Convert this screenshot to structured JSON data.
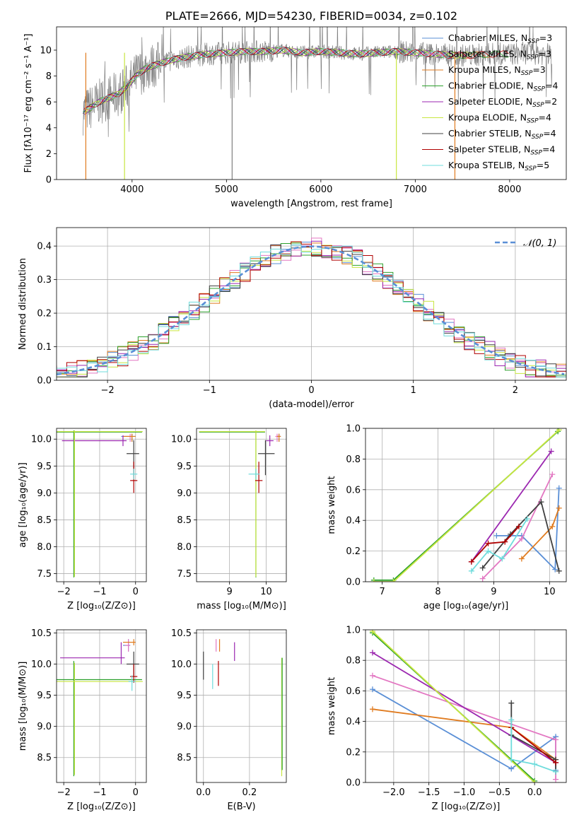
{
  "chart_data": [
    {
      "id": "spectrum",
      "type": "line",
      "title": "PLATE=2666, MJD=54230, FIBERID=0034, z=0.102",
      "xlabel": "wavelength [Angstrom, rest frame]",
      "ylabel": "Flux [fλ10⁻¹⁷ erg cm⁻² s⁻¹ A⁻¹]",
      "xlim": [
        3200,
        8600
      ],
      "ylim": [
        0,
        11.8
      ],
      "xticks": [
        4000,
        5000,
        6000,
        7000,
        8000
      ],
      "yticks": [
        0,
        2,
        4,
        6,
        8,
        10
      ],
      "grid": false,
      "legend_position": "top-right",
      "data_color": "#808080",
      "data_x": [
        3480,
        3550,
        3650,
        3750,
        3850,
        3950,
        4050,
        4150,
        4300,
        4450,
        4600,
        4800,
        5000,
        5200,
        5400,
        5600,
        5800,
        6000,
        6200,
        6400,
        6600,
        6800,
        7000,
        7200,
        7400,
        7600,
        7800,
        8000,
        8200,
        8400
      ],
      "data_y": [
        5.2,
        5.5,
        6.0,
        6.3,
        6.6,
        7.2,
        8.1,
        8.6,
        9.0,
        9.3,
        9.5,
        9.7,
        9.8,
        9.9,
        9.9,
        10.0,
        9.8,
        9.9,
        9.8,
        9.7,
        9.8,
        9.9,
        9.8,
        9.7,
        9.6,
        9.6,
        9.7,
        9.7,
        9.8,
        9.7
      ],
      "series": [
        {
          "name": "Chabrier MILES, N",
          "sub": "SSP",
          "suffix": "=3",
          "color": "#5a8fd6"
        },
        {
          "name": "Salpeter MILES, N",
          "sub": "SSP",
          "suffix": "=3",
          "color": "#e377c2"
        },
        {
          "name": "Kroupa MILES, N",
          "sub": "SSP",
          "suffix": "=3",
          "color": "#e07b1f"
        },
        {
          "name": "Chabrier ELODIE, N",
          "sub": "SSP",
          "suffix": "=4",
          "color": "#2ca02c"
        },
        {
          "name": "Salpeter ELODIE, N",
          "sub": "SSP",
          "suffix": "=2",
          "color": "#9b27b0"
        },
        {
          "name": "Kroupa ELODIE, N",
          "sub": "SSP",
          "suffix": "=4",
          "color": "#c8e640"
        },
        {
          "name": "Chabrier STELIB, N",
          "sub": "SSP",
          "suffix": "=4",
          "color": "#404040"
        },
        {
          "name": "Salpeter STELIB, N",
          "sub": "SSP",
          "suffix": "=4",
          "color": "#b00000"
        },
        {
          "name": "Kroupa STELIB, N",
          "sub": "SSP",
          "suffix": "=5",
          "color": "#6fdcdc"
        }
      ],
      "model_dropouts": [
        {
          "x": 3920,
          "color": "#c8e640"
        },
        {
          "x": 6800,
          "color": "#c8e640"
        },
        {
          "x": 7420,
          "color": "#e07b1f"
        },
        {
          "x": 5060,
          "color": "#808080"
        },
        {
          "x": 3510,
          "color": "#e07b1f"
        }
      ]
    },
    {
      "id": "residuals",
      "type": "histogram",
      "xlabel": "(data-model)/error",
      "ylabel": "Normed distribution",
      "xlim": [
        -2.5,
        2.5
      ],
      "ylim": [
        0,
        0.455
      ],
      "xticks": [
        -2,
        -1,
        0,
        1,
        2
      ],
      "yticks": [
        0.0,
        0.1,
        0.2,
        0.3,
        0.4
      ],
      "grid": true,
      "legend_position": "top-right",
      "normal_curve": {
        "label": "𝒩(0, 1)",
        "color": "#5a8fd6",
        "style": "dashed"
      },
      "bin_width": 0.1,
      "series_colors": [
        "#5a8fd6",
        "#e377c2",
        "#e07b1f",
        "#2ca02c",
        "#9b27b0",
        "#c8e640",
        "#404040",
        "#b00000",
        "#6fdcdc"
      ]
    },
    {
      "id": "age-vs-Z",
      "type": "errorbar",
      "xlabel": "Z [log₁₀(Z/Z⊙)]",
      "ylabel": "age  [log₁₀(age/yr)]",
      "xlim": [
        -2.2,
        0.3
      ],
      "ylim": [
        7.35,
        10.2
      ],
      "xticks": [
        -2,
        -1,
        0
      ],
      "yticks": [
        7.5,
        8.0,
        8.5,
        9.0,
        9.5,
        10.0
      ],
      "grid": true,
      "points": [
        {
          "x": -0.1,
          "y": 10.05,
          "xerr": [
            0.3,
            0.1
          ],
          "yerr": [
            0.1,
            0.05
          ],
          "color": "#5a8fd6"
        },
        {
          "x": -0.15,
          "y": 10.05,
          "xerr": [
            0.2,
            0.05
          ],
          "yerr": [
            0.1,
            0.05
          ],
          "color": "#e377c2"
        },
        {
          "x": -0.1,
          "y": 10.05,
          "xerr": [
            0.25,
            0.1
          ],
          "yerr": [
            0.1,
            0.05
          ],
          "color": "#e07b1f"
        },
        {
          "x": -1.72,
          "y": 10.13,
          "xerr": [
            0.5,
            1.9
          ],
          "yerr": [
            2.7,
            0.03
          ],
          "color": "#2ca02c"
        },
        {
          "x": -0.35,
          "y": 9.97,
          "xerr": [
            1.7,
            0.1
          ],
          "yerr": [
            0.1,
            0.1
          ],
          "color": "#9b27b0"
        },
        {
          "x": -1.7,
          "y": 10.14,
          "xerr": [
            0.5,
            1.9
          ],
          "yerr": [
            2.7,
            0.02
          ],
          "color": "#c8e640"
        },
        {
          "x": -0.05,
          "y": 9.73,
          "xerr": [
            0.2,
            0.15
          ],
          "yerr": [
            0.4,
            0.25
          ],
          "color": "#404040"
        },
        {
          "x": -0.05,
          "y": 9.23,
          "xerr": [
            0.1,
            0.1
          ],
          "yerr": [
            0.23,
            0.35
          ],
          "color": "#b00000"
        },
        {
          "x": -0.05,
          "y": 9.35,
          "xerr": [
            0.1,
            0.1
          ],
          "yerr": [
            0.1,
            0.1
          ],
          "color": "#6fdcdc"
        }
      ]
    },
    {
      "id": "age-vs-mass",
      "type": "errorbar",
      "xlabel": "mass [log₁₀(M/M⊙)]",
      "ylabel": "",
      "xlim": [
        8.1,
        10.55
      ],
      "ylim": [
        7.35,
        10.2
      ],
      "xticks": [
        9,
        10
      ],
      "yticks": [
        7.5,
        8.0,
        8.5,
        9.0,
        9.5,
        10.0
      ],
      "grid": true,
      "points": [
        {
          "x": 10.35,
          "y": 10.05,
          "xerr": [
            0.05,
            0.05
          ],
          "yerr": [
            0.1,
            0.05
          ],
          "color": "#5a8fd6"
        },
        {
          "x": 10.3,
          "y": 10.05,
          "xerr": [
            0.05,
            0.05
          ],
          "yerr": [
            0.1,
            0.05
          ],
          "color": "#e377c2"
        },
        {
          "x": 10.35,
          "y": 10.05,
          "xerr": [
            0.05,
            0.05
          ],
          "yerr": [
            0.1,
            0.05
          ],
          "color": "#e07b1f"
        },
        {
          "x": 9.72,
          "y": 10.13,
          "xerr": [
            1.55,
            0.25
          ],
          "yerr": [
            2.7,
            0.03
          ],
          "color": "#2ca02c"
        },
        {
          "x": 10.1,
          "y": 9.97,
          "xerr": [
            0.1,
            0.1
          ],
          "yerr": [
            0.1,
            0.1
          ],
          "color": "#9b27b0"
        },
        {
          "x": 9.72,
          "y": 10.14,
          "xerr": [
            1.55,
            0.25
          ],
          "yerr": [
            2.7,
            0.02
          ],
          "color": "#c8e640"
        },
        {
          "x": 9.98,
          "y": 9.73,
          "xerr": [
            0.2,
            0.25
          ],
          "yerr": [
            0.4,
            0.25
          ],
          "color": "#404040"
        },
        {
          "x": 9.8,
          "y": 9.23,
          "xerr": [
            0.1,
            0.1
          ],
          "yerr": [
            0.23,
            0.35
          ],
          "color": "#b00000"
        },
        {
          "x": 9.72,
          "y": 9.35,
          "xerr": [
            0.2,
            0.1
          ],
          "yerr": [
            0.1,
            0.1
          ],
          "color": "#6fdcdc"
        }
      ]
    },
    {
      "id": "weight-vs-age",
      "type": "line",
      "xlabel": "age  [log₁₀(age/yr)]",
      "ylabel": "mass weight",
      "xlim": [
        6.7,
        10.3
      ],
      "ylim": [
        0,
        1.0
      ],
      "xticks": [
        7,
        8,
        9,
        10
      ],
      "yticks": [
        0.0,
        0.2,
        0.4,
        0.6,
        0.8,
        1.0
      ],
      "grid": true,
      "series": [
        {
          "color": "#5a8fd6",
          "x": [
            9.05,
            9.5,
            10.1,
            10.17
          ],
          "y": [
            0.3,
            0.3,
            0.08,
            0.61
          ]
        },
        {
          "color": "#e377c2",
          "x": [
            8.8,
            9.5,
            10.05
          ],
          "y": [
            0.02,
            0.28,
            0.7
          ]
        },
        {
          "color": "#e07b1f",
          "x": [
            9.5,
            10.05,
            10.17
          ],
          "y": [
            0.15,
            0.36,
            0.48
          ]
        },
        {
          "color": "#2ca02c",
          "x": [
            6.85,
            7.2,
            10.15
          ],
          "y": [
            0.01,
            0.01,
            0.98
          ]
        },
        {
          "color": "#9b27b0",
          "x": [
            8.6,
            10.03
          ],
          "y": [
            0.13,
            0.85
          ]
        },
        {
          "color": "#c8e640",
          "x": [
            6.85,
            7.2,
            10.17
          ],
          "y": [
            0.0,
            0.0,
            0.99
          ]
        },
        {
          "color": "#404040",
          "x": [
            8.8,
            9.3,
            9.85,
            10.17
          ],
          "y": [
            0.09,
            0.31,
            0.52,
            0.07
          ]
        },
        {
          "color": "#b00000",
          "x": [
            8.6,
            8.9,
            9.2,
            9.45
          ],
          "y": [
            0.13,
            0.25,
            0.26,
            0.36
          ]
        },
        {
          "color": "#6fdcdc",
          "x": [
            8.6,
            8.9,
            9.15,
            9.6
          ],
          "y": [
            0.07,
            0.2,
            0.15,
            0.41
          ]
        }
      ]
    },
    {
      "id": "mass-vs-Z",
      "type": "errorbar",
      "xlabel": "Z [log₁₀(Z/Z⊙)]",
      "ylabel": "mass [log₁₀(M/M⊙)]",
      "xlim": [
        -2.2,
        0.3
      ],
      "ylim": [
        8.1,
        10.55
      ],
      "xticks": [
        -2,
        -1,
        0
      ],
      "yticks": [
        8.5,
        9.0,
        9.5,
        10.0,
        10.5
      ],
      "grid": true,
      "points": [
        {
          "x": -0.2,
          "y": 10.3,
          "xerr": [
            0.15,
            0.05
          ],
          "yerr": [
            0.1,
            0.1
          ],
          "color": "#5a8fd6"
        },
        {
          "x": -0.2,
          "y": 10.3,
          "xerr": [
            0.1,
            0.05
          ],
          "yerr": [
            0.1,
            0.1
          ],
          "color": "#e377c2"
        },
        {
          "x": -0.05,
          "y": 10.35,
          "xerr": [
            0.3,
            0.05
          ],
          "yerr": [
            0.05,
            0.05
          ],
          "color": "#e07b1f"
        },
        {
          "x": -1.72,
          "y": 9.75,
          "xerr": [
            0.5,
            1.9
          ],
          "yerr": [
            1.55,
            0.3
          ],
          "color": "#2ca02c"
        },
        {
          "x": -0.4,
          "y": 10.1,
          "xerr": [
            1.7,
            0.1
          ],
          "yerr": [
            0.1,
            0.25
          ],
          "color": "#9b27b0"
        },
        {
          "x": -1.7,
          "y": 9.72,
          "xerr": [
            0.5,
            1.9
          ],
          "yerr": [
            1.5,
            0.3
          ],
          "color": "#c8e640"
        },
        {
          "x": -0.05,
          "y": 10.0,
          "xerr": [
            0.2,
            0.15
          ],
          "yerr": [
            0.2,
            0.2
          ],
          "color": "#404040"
        },
        {
          "x": -0.05,
          "y": 9.8,
          "xerr": [
            0.1,
            0.1
          ],
          "yerr": [
            0.1,
            0.2
          ],
          "color": "#b00000"
        },
        {
          "x": -0.1,
          "y": 9.72,
          "xerr": [
            0.1,
            0.1
          ],
          "yerr": [
            0.15,
            0.1
          ],
          "color": "#6fdcdc"
        }
      ]
    },
    {
      "id": "mass-vs-EBV",
      "type": "errorbar",
      "xlabel": "E(B-V)",
      "ylabel": "",
      "xlim": [
        -0.03,
        0.36
      ],
      "ylim": [
        8.1,
        10.55
      ],
      "xticks": [
        0.0,
        0.2
      ],
      "yticks": [
        8.5,
        9.0,
        9.5,
        10.0,
        10.5
      ],
      "grid": true,
      "points": [
        {
          "x": 0.0,
          "y": 10.0,
          "yerr": [
            0.25,
            0.2
          ],
          "color": "#404040"
        },
        {
          "x": 0.04,
          "y": 9.8,
          "yerr": [
            0.2,
            0.2
          ],
          "color": "#6fdcdc"
        },
        {
          "x": 0.055,
          "y": 10.3,
          "yerr": [
            0.1,
            0.1
          ],
          "color": "#e377c2"
        },
        {
          "x": 0.065,
          "y": 9.85,
          "yerr": [
            0.2,
            0.2
          ],
          "color": "#b00000"
        },
        {
          "x": 0.07,
          "y": 10.3,
          "yerr": [
            0.1,
            0.1
          ],
          "color": "#e07b1f"
        },
        {
          "x": 0.135,
          "y": 10.2,
          "yerr": [
            0.15,
            0.15
          ],
          "color": "#9b27b0"
        },
        {
          "x": 0.34,
          "y": 9.0,
          "yerr": [
            0.8,
            1.1
          ],
          "color": "#c8e640"
        },
        {
          "x": 0.342,
          "y": 9.2,
          "yerr": [
            0.9,
            0.9
          ],
          "color": "#2ca02c"
        }
      ]
    },
    {
      "id": "weight-vs-Z",
      "type": "line",
      "xlabel": "Z [log₁₀(Z/Z⊙)]",
      "ylabel": "mass weight",
      "xlim": [
        -2.4,
        0.45
      ],
      "ylim": [
        0,
        1.0
      ],
      "xticks": [
        -2.0,
        -1.5,
        -1.0,
        -0.5,
        0.0
      ],
      "yticks": [
        0.0,
        0.2,
        0.4,
        0.6,
        0.8,
        1.0
      ],
      "grid": true,
      "series": [
        {
          "color": "#5a8fd6",
          "x": [
            -2.3,
            -0.33,
            0.3,
            0.3
          ],
          "y": [
            0.61,
            0.09,
            0.3,
            0.08
          ]
        },
        {
          "color": "#e377c2",
          "x": [
            -2.3,
            0.3,
            0.3
          ],
          "y": [
            0.7,
            0.28,
            0.02
          ]
        },
        {
          "color": "#e07b1f",
          "x": [
            -2.3,
            -0.33,
            0.3
          ],
          "y": [
            0.48,
            0.36,
            0.15
          ]
        },
        {
          "color": "#2ca02c",
          "x": [
            -2.3,
            0.0
          ],
          "y": [
            0.98,
            0.01
          ]
        },
        {
          "color": "#9b27b0",
          "x": [
            -2.3,
            0.3
          ],
          "y": [
            0.85,
            0.13
          ]
        },
        {
          "color": "#c8e640",
          "x": [
            -2.3,
            0.0
          ],
          "y": [
            0.99,
            0.0
          ]
        },
        {
          "color": "#404040",
          "x": [
            -0.33,
            -0.33,
            0.3,
            0.3
          ],
          "y": [
            0.52,
            0.31,
            0.15,
            0.07
          ]
        },
        {
          "color": "#b00000",
          "x": [
            -0.33,
            0.3
          ],
          "y": [
            0.36,
            0.13
          ]
        },
        {
          "color": "#6fdcdc",
          "x": [
            -0.33,
            -0.33,
            0.0,
            0.3
          ],
          "y": [
            0.41,
            0.15,
            0.12,
            0.07
          ]
        }
      ]
    }
  ]
}
